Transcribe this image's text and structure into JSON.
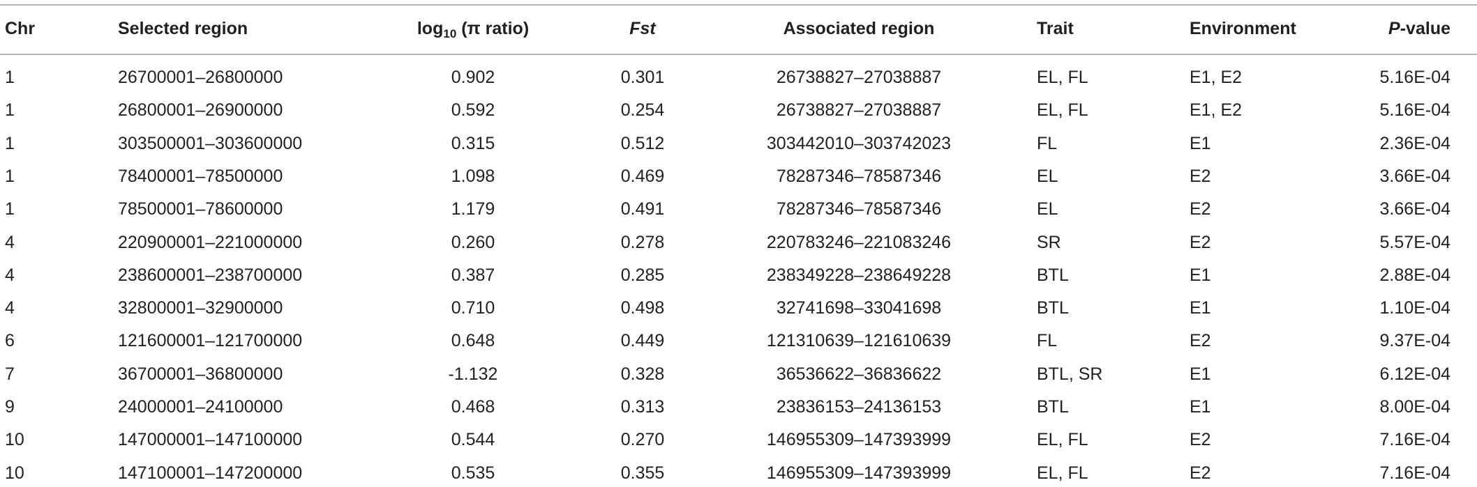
{
  "table": {
    "header": [
      "Chr",
      "Selected region",
      {
        "text": "log",
        "sub": "10",
        "rest": " (π ratio)"
      },
      "Fst",
      "Associated region",
      "Trait",
      "Environment",
      {
        "italic": "P",
        "rest": "-value"
      }
    ],
    "rows": [
      [
        "1",
        "26700001–26800000",
        "0.902",
        "0.301",
        "26738827–27038887",
        "EL, FL",
        "E1, E2",
        "5.16E-04"
      ],
      [
        "1",
        "26800001–26900000",
        "0.592",
        "0.254",
        "26738827–27038887",
        "EL, FL",
        "E1, E2",
        "5.16E-04"
      ],
      [
        "1",
        "303500001–303600000",
        "0.315",
        "0.512",
        "303442010–303742023",
        "FL",
        "E1",
        "2.36E-04"
      ],
      [
        "1",
        "78400001–78500000",
        "1.098",
        "0.469",
        "78287346–78587346",
        "EL",
        "E2",
        "3.66E-04"
      ],
      [
        "1",
        "78500001–78600000",
        "1.179",
        "0.491",
        "78287346–78587346",
        "EL",
        "E2",
        "3.66E-04"
      ],
      [
        "4",
        "220900001–221000000",
        "0.260",
        "0.278",
        "220783246–221083246",
        "SR",
        "E2",
        "5.57E-04"
      ],
      [
        "4",
        "238600001–238700000",
        "0.387",
        "0.285",
        "238349228–238649228",
        "BTL",
        "E1",
        "2.88E-04"
      ],
      [
        "4",
        "32800001–32900000",
        "0.710",
        "0.498",
        "32741698–33041698",
        "BTL",
        "E1",
        "1.10E-04"
      ],
      [
        "6",
        "121600001–121700000",
        "0.648",
        "0.449",
        "121310639–121610639",
        "FL",
        "E2",
        "9.37E-04"
      ],
      [
        "7",
        "36700001–36800000",
        "-1.132",
        "0.328",
        "36536622–36836622",
        "BTL, SR",
        "E1",
        "6.12E-04"
      ],
      [
        "9",
        "24000001–24100000",
        "0.468",
        "0.313",
        "23836153–24136153",
        "BTL",
        "E1",
        "8.00E-04"
      ],
      [
        "10",
        "147000001–147100000",
        "0.544",
        "0.270",
        "146955309–147393999",
        "EL, FL",
        "E2",
        "7.16E-04"
      ],
      [
        "10",
        "147100001–147200000",
        "0.535",
        "0.355",
        "146955309–147393999",
        "EL, FL",
        "E2",
        "7.16E-04"
      ]
    ]
  }
}
